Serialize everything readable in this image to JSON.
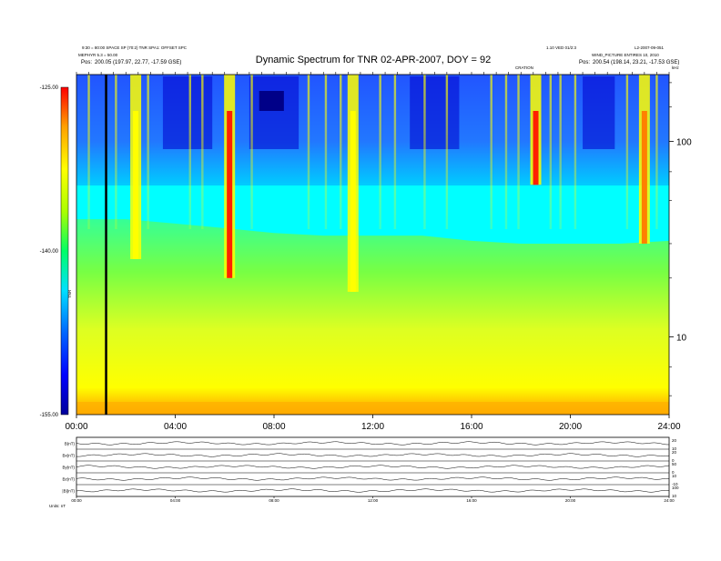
{
  "header": {
    "title": "Dynamic Spectrum for TNR 02-APR-2007, DOY = 92",
    "left_line1": "9:30 = 80:00 SPACE SP (70:2) TNR SPA1: OFFSET SPC",
    "left_line2": "MEPHYR 5.3 = 50.00",
    "left_pos_label": "Pos:",
    "left_pos_value": "200.05 (197.97, 22.77, -17.59 GSE)",
    "right_line1": "1.10 VED 01/2:3",
    "right_line2": "WIND_PICTURE ENTIRES 10, 2010",
    "right_line3": "L2-2007-09-051",
    "right_pos_label": "Pos:",
    "right_pos_value": "200.54 (198.14, 23.21, -17.53 GSE)",
    "event_marker": "CRATION",
    "colorbar_side_label": "TNR",
    "freq_unit": "kHz",
    "bottom_left_note": "Units: nT"
  },
  "colors": {
    "colorbar": [
      "#00009a",
      "#0000ff",
      "#0066ff",
      "#00e0ff",
      "#00ff66",
      "#aaff00",
      "#ffff00",
      "#ffa000",
      "#ff0000"
    ]
  },
  "chart_data": [
    {
      "type": "heatmap",
      "title": "Dynamic Spectrum for TNR 02-APR-2007, DOY = 92",
      "x_ticks": [
        "00:00",
        "04:00",
        "08:00",
        "12:00",
        "16:00",
        "20:00",
        "24:00"
      ],
      "xlim": [
        0,
        24
      ],
      "y_scale": "log",
      "ylim": [
        4,
        220
      ],
      "y_ticks": [
        "100",
        "10"
      ],
      "y_tick_values": [
        100,
        10
      ],
      "colorbar_ticks": [
        "-125.00",
        "-140.00",
        "-155.00"
      ],
      "colorbar_range": [
        -155,
        -125
      ],
      "background_level_boundary_khz": [
        {
          "x": 0.0,
          "y": 40
        },
        {
          "x": 2.0,
          "y": 40
        },
        {
          "x": 4.0,
          "y": 38
        },
        {
          "x": 6.0,
          "y": 36
        },
        {
          "x": 8.0,
          "y": 34
        },
        {
          "x": 10.0,
          "y": 33
        },
        {
          "x": 12.0,
          "y": 33
        },
        {
          "x": 14.0,
          "y": 33
        },
        {
          "x": 16.0,
          "y": 31
        },
        {
          "x": 18.0,
          "y": 30
        },
        {
          "x": 20.0,
          "y": 30
        },
        {
          "x": 22.0,
          "y": 30
        },
        {
          "x": 24.0,
          "y": 31
        }
      ],
      "bursts": [
        {
          "t": 2.4,
          "f_low": 25,
          "intensity": "yellow"
        },
        {
          "t": 6.2,
          "f_low": 20,
          "intensity": "red"
        },
        {
          "t": 11.2,
          "f_low": 17,
          "intensity": "yellow"
        },
        {
          "t": 18.6,
          "f_low": 60,
          "intensity": "red"
        },
        {
          "t": 23.0,
          "f_low": 30,
          "intensity": "orange"
        }
      ],
      "vertical_marker_hour": 1.2
    },
    {
      "type": "line",
      "panels": [
        {
          "label": "B(nT)",
          "right_ticks": [
            "20",
            "10"
          ]
        },
        {
          "label": "Bx(nT)",
          "right_ticks": [
            "20",
            "0"
          ]
        },
        {
          "label": "By(nT)",
          "right_ticks": [
            "50",
            "0"
          ]
        },
        {
          "label": "Bz(nT)",
          "right_ticks": [
            "10",
            "-10"
          ]
        },
        {
          "label": "|B|(nT)",
          "right_ticks": [
            "100",
            "10"
          ]
        }
      ],
      "x_ticks": [
        "00:00",
        "04:00",
        "08:00",
        "12:00",
        "16:00",
        "20:00",
        "24:00"
      ]
    }
  ]
}
